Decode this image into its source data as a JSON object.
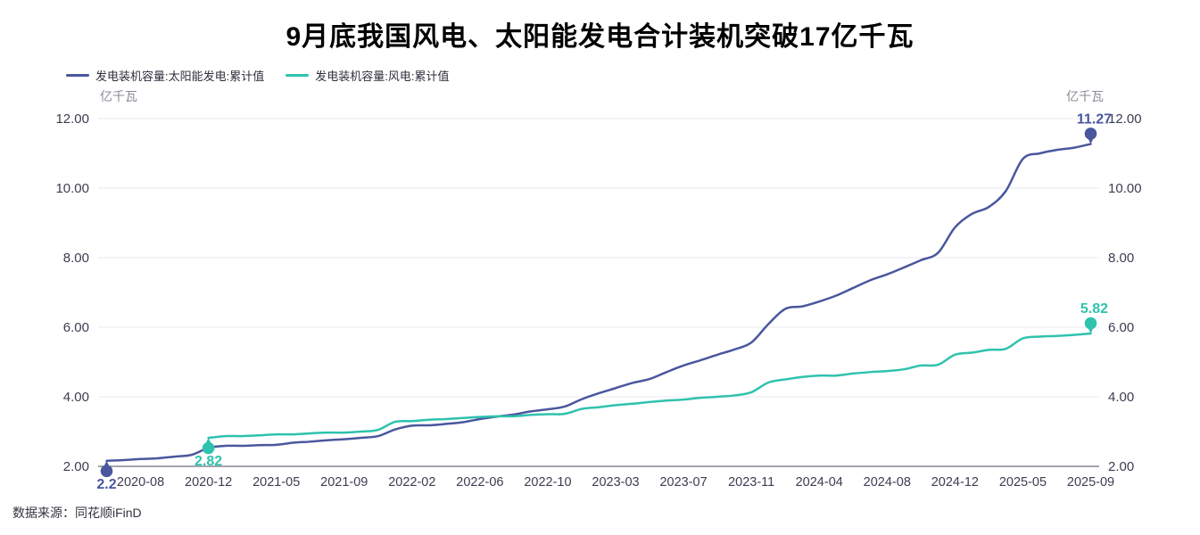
{
  "title": "9月底我国风电、太阳能发电合计装机突破17亿千瓦",
  "source": "数据来源：同花顺iFinD",
  "axes": {
    "unit_left": "亿千瓦",
    "unit_right": "亿千瓦"
  },
  "legend": [
    {
      "label": "发电装机容量:太阳能发电:累计值",
      "color": "#4a579e"
    },
    {
      "label": "发电装机容量:风电:累计值",
      "color": "#2fc2ae"
    }
  ],
  "colors": {
    "solar": "#4a579e",
    "wind": "#2fc2ae",
    "grid_line": "#e9e9f1",
    "axis_line": "#4a4a5e",
    "tick_text": "#3d3d52",
    "unit_text": "#8b8b97",
    "title_text": "#000000",
    "background": "#ffffff"
  },
  "chart_data": {
    "type": "line",
    "title": "9月底我国风电、太阳能发电合计装机突破17亿千瓦",
    "ylabel": "亿千瓦",
    "ylim": [
      2,
      12
    ],
    "yticks": [
      2,
      4,
      6,
      8,
      10,
      12
    ],
    "ytick_labels": [
      "2.00",
      "4.00",
      "6.00",
      "8.00",
      "10.00",
      "12.00"
    ],
    "grid": true,
    "legend_position": "top-left",
    "smooth": true,
    "x": [
      "2020-06",
      "2020-07",
      "2020-08",
      "2020-09",
      "2020-10",
      "2020-11",
      "2020-12",
      "2021-02",
      "2021-03",
      "2021-04",
      "2021-05",
      "2021-06",
      "2021-07",
      "2021-08",
      "2021-09",
      "2021-10",
      "2021-11",
      "2021-12",
      "2022-02",
      "2022-03",
      "2022-04",
      "2022-05",
      "2022-06",
      "2022-07",
      "2022-08",
      "2022-09",
      "2022-10",
      "2022-11",
      "2022-12",
      "2023-02",
      "2023-03",
      "2023-04",
      "2023-05",
      "2023-06",
      "2023-07",
      "2023-08",
      "2023-09",
      "2023-10",
      "2023-11",
      "2023-12",
      "2024-02",
      "2024-03",
      "2024-04",
      "2024-05",
      "2024-06",
      "2024-07",
      "2024-08",
      "2024-09",
      "2024-10",
      "2024-11",
      "2024-12",
      "2025-02",
      "2025-03",
      "2025-04",
      "2025-05",
      "2025-06",
      "2025-07",
      "2025-08",
      "2025-09"
    ],
    "x_tick_indices": [
      2,
      6,
      10,
      14,
      18,
      22,
      26,
      30,
      34,
      38,
      42,
      46,
      50,
      54,
      58
    ],
    "x_tick_labels": [
      "2020-08",
      "2020-12",
      "2021-05",
      "2021-09",
      "2022-02",
      "2022-06",
      "2022-10",
      "2023-03",
      "2023-07",
      "2023-11",
      "2024-04",
      "2024-08",
      "2024-12",
      "2025-05",
      "2025-09"
    ],
    "series": [
      {
        "name": "发电装机容量:太阳能发电:累计值",
        "color": "#4a579e",
        "first_point_label": "2.2",
        "last_point_label": "11.27",
        "values": [
          2.16,
          2.18,
          2.21,
          2.23,
          2.28,
          2.33,
          2.53,
          2.59,
          2.59,
          2.61,
          2.62,
          2.68,
          2.71,
          2.75,
          2.78,
          2.82,
          2.87,
          3.06,
          3.17,
          3.18,
          3.22,
          3.27,
          3.36,
          3.43,
          3.49,
          3.58,
          3.64,
          3.72,
          3.93,
          4.1,
          4.25,
          4.4,
          4.51,
          4.71,
          4.9,
          5.05,
          5.21,
          5.36,
          5.56,
          6.09,
          6.53,
          6.6,
          6.74,
          6.91,
          7.13,
          7.35,
          7.52,
          7.72,
          7.93,
          8.14,
          8.87,
          9.26,
          9.46,
          9.92,
          10.84,
          11.0,
          11.1,
          11.16,
          11.27
        ]
      },
      {
        "name": "发电装机容量:风电:累计值",
        "color": "#2fc2ae",
        "first_point_label": "2.82",
        "last_point_label": "5.82",
        "values": [
          null,
          null,
          null,
          null,
          null,
          null,
          2.82,
          2.87,
          2.87,
          2.89,
          2.92,
          2.92,
          2.95,
          2.97,
          2.97,
          3.0,
          3.05,
          3.28,
          3.3,
          3.34,
          3.36,
          3.39,
          3.42,
          3.44,
          3.44,
          3.48,
          3.5,
          3.51,
          3.65,
          3.7,
          3.76,
          3.8,
          3.85,
          3.89,
          3.92,
          3.97,
          4.0,
          4.04,
          4.13,
          4.41,
          4.5,
          4.57,
          4.61,
          4.61,
          4.67,
          4.71,
          4.74,
          4.79,
          4.9,
          4.92,
          5.21,
          5.27,
          5.35,
          5.38,
          5.68,
          5.73,
          5.75,
          5.78,
          5.82
        ]
      }
    ]
  }
}
